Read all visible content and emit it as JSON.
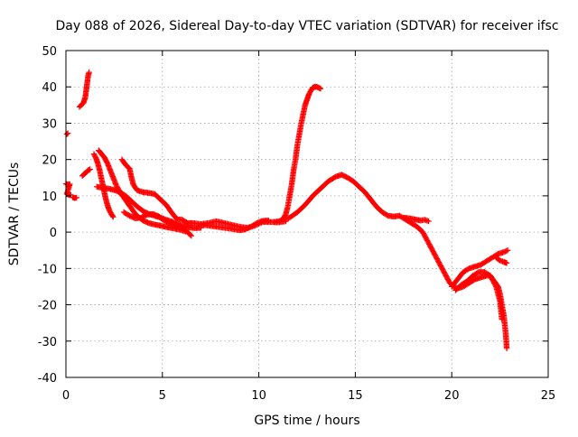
{
  "chart_data": {
    "type": "scatter",
    "title": "Day 088 of 2026, Sidereal Day-to-day VTEC variation (SDTVAR) for receiver ifsc",
    "xlabel": "GPS time / hours",
    "ylabel": "SDTVAR / TECUs",
    "xlim": [
      0,
      25
    ],
    "ylim": [
      -40,
      50
    ],
    "xticks": [
      0,
      5,
      10,
      15,
      20,
      25
    ],
    "yticks": [
      -40,
      -30,
      -20,
      -10,
      0,
      10,
      20,
      30,
      40,
      50
    ],
    "grid": true,
    "legend": "none",
    "marker": "plus",
    "color": "#ff0000",
    "series": [
      {
        "name": "early-point-1",
        "points": [
          [
            0.05,
            27
          ],
          [
            0.1,
            27.2
          ]
        ]
      },
      {
        "name": "early-point-2",
        "points": [
          [
            0.0,
            13.3
          ],
          [
            0.1,
            13.1
          ],
          [
            0.2,
            13.2
          ],
          [
            0.05,
            10.5
          ],
          [
            0.15,
            10.3
          ],
          [
            0.25,
            10.2
          ]
        ]
      },
      {
        "name": "early-point-3",
        "points": [
          [
            0.35,
            9.6
          ],
          [
            0.45,
            9.4
          ],
          [
            0.55,
            9.5
          ]
        ]
      },
      {
        "name": "early-point-4",
        "points": [
          [
            0.85,
            15.5
          ],
          [
            0.95,
            16
          ],
          [
            1.05,
            16.5
          ],
          [
            1.15,
            17
          ],
          [
            1.25,
            17.3
          ]
        ]
      },
      {
        "name": "pass-high-early",
        "points": [
          [
            0.7,
            34.5
          ],
          [
            0.8,
            35
          ],
          [
            0.9,
            35.5
          ],
          [
            1.0,
            37
          ],
          [
            1.05,
            39
          ],
          [
            1.1,
            41
          ],
          [
            1.15,
            43
          ],
          [
            1.2,
            44
          ]
        ]
      },
      {
        "name": "pass-early-a",
        "points": [
          [
            1.45,
            21.5
          ],
          [
            1.55,
            20.5
          ],
          [
            1.65,
            19
          ],
          [
            1.75,
            17
          ],
          [
            1.85,
            14.5
          ],
          [
            1.95,
            12
          ],
          [
            2.05,
            9.5
          ],
          [
            2.15,
            7.5
          ],
          [
            2.25,
            6
          ],
          [
            2.35,
            5
          ],
          [
            2.45,
            4.2
          ]
        ]
      },
      {
        "name": "pass-early-b",
        "points": [
          [
            1.7,
            22.5
          ],
          [
            1.85,
            21.5
          ],
          [
            2.0,
            20.5
          ],
          [
            2.15,
            19
          ],
          [
            2.3,
            17
          ],
          [
            2.45,
            15
          ],
          [
            2.6,
            13
          ],
          [
            2.8,
            11
          ],
          [
            3.0,
            9.5
          ],
          [
            3.2,
            8
          ],
          [
            3.4,
            6.5
          ],
          [
            3.6,
            5
          ],
          [
            3.8,
            4
          ],
          [
            4.0,
            3.2
          ],
          [
            4.3,
            2.5
          ],
          [
            4.6,
            2.1
          ],
          [
            4.9,
            1.8
          ],
          [
            5.2,
            1.4
          ],
          [
            5.5,
            1.1
          ],
          [
            5.8,
            0.8
          ],
          [
            6.0,
            0.5
          ],
          [
            6.2,
            0.2
          ]
        ]
      },
      {
        "name": "pass-early-c",
        "points": [
          [
            1.6,
            12.5
          ],
          [
            1.9,
            12.2
          ],
          [
            2.2,
            12
          ],
          [
            2.5,
            11.6
          ],
          [
            2.8,
            11
          ],
          [
            3.1,
            10
          ],
          [
            3.4,
            8.5
          ],
          [
            3.7,
            7
          ],
          [
            4.0,
            5.8
          ],
          [
            4.3,
            5
          ],
          [
            4.6,
            4.5
          ],
          [
            4.9,
            4
          ],
          [
            5.2,
            3.4
          ],
          [
            5.5,
            2.9
          ],
          [
            5.8,
            2.2
          ],
          [
            6.1,
            1.7
          ],
          [
            6.4,
            1.3
          ],
          [
            6.7,
            1.1
          ],
          [
            7.0,
            1.2
          ]
        ]
      },
      {
        "name": "pass-early-d",
        "points": [
          [
            2.9,
            20
          ],
          [
            3.1,
            18.5
          ],
          [
            3.3,
            17.5
          ],
          [
            3.4,
            15
          ],
          [
            3.5,
            13
          ],
          [
            3.7,
            11.5
          ],
          [
            4.0,
            11
          ],
          [
            4.3,
            10.8
          ],
          [
            4.6,
            10.5
          ],
          [
            4.8,
            9.5
          ],
          [
            5.0,
            8.5
          ],
          [
            5.2,
            7.5
          ],
          [
            5.4,
            6
          ],
          [
            5.6,
            4.5
          ],
          [
            5.8,
            3.5
          ],
          [
            6.0,
            3.5
          ],
          [
            6.3,
            2.5
          ],
          [
            6.6,
            2.5
          ],
          [
            7.0,
            2.2
          ],
          [
            7.4,
            2.5
          ],
          [
            7.8,
            3
          ],
          [
            8.2,
            2.5
          ],
          [
            8.6,
            2
          ],
          [
            9.0,
            1.5
          ],
          [
            9.4,
            1.2
          ],
          [
            9.8,
            1.8
          ],
          [
            10.2,
            2.8
          ],
          [
            10.6,
            2.8
          ],
          [
            11.0,
            2.7
          ],
          [
            11.4,
            3
          ]
        ]
      },
      {
        "name": "pass-early-e",
        "points": [
          [
            3.0,
            5.5
          ],
          [
            3.3,
            4.5
          ],
          [
            3.6,
            3.8
          ],
          [
            3.9,
            4
          ],
          [
            4.2,
            4.8
          ],
          [
            4.5,
            5
          ],
          [
            4.8,
            4.4
          ],
          [
            5.1,
            3.2
          ],
          [
            5.4,
            2.4
          ],
          [
            5.7,
            1.7
          ],
          [
            6.0,
            1.5
          ],
          [
            6.3,
            0
          ],
          [
            6.5,
            -1
          ]
        ]
      },
      {
        "name": "pass-dip-mid",
        "points": [
          [
            7.0,
            2
          ],
          [
            7.4,
            1.8
          ],
          [
            7.8,
            1.5
          ],
          [
            8.2,
            1.2
          ],
          [
            8.6,
            0.9
          ],
          [
            9.0,
            0.5
          ],
          [
            9.3,
            0.8
          ],
          [
            9.6,
            1.5
          ],
          [
            9.9,
            2.5
          ],
          [
            10.2,
            3.1
          ],
          [
            10.5,
            3.2
          ]
        ]
      },
      {
        "name": "pass-rise-high",
        "points": [
          [
            11.2,
            3.5
          ],
          [
            11.3,
            4
          ],
          [
            11.4,
            5
          ],
          [
            11.5,
            7
          ],
          [
            11.6,
            10
          ],
          [
            11.7,
            13
          ],
          [
            11.8,
            17
          ],
          [
            11.9,
            20
          ],
          [
            12.0,
            24
          ],
          [
            12.1,
            27
          ],
          [
            12.2,
            30
          ],
          [
            12.3,
            32.5
          ],
          [
            12.4,
            35
          ],
          [
            12.5,
            36.5
          ],
          [
            12.6,
            38
          ],
          [
            12.7,
            39
          ],
          [
            12.8,
            39.8
          ],
          [
            12.9,
            40
          ],
          [
            13.0,
            40
          ],
          [
            13.1,
            39.8
          ],
          [
            13.2,
            39.5
          ]
        ]
      },
      {
        "name": "pass-main-hump",
        "points": [
          [
            10.8,
            2.8
          ],
          [
            11.2,
            3.2
          ],
          [
            11.6,
            4
          ],
          [
            12.0,
            5.5
          ],
          [
            12.4,
            7.5
          ],
          [
            12.8,
            10
          ],
          [
            13.2,
            12
          ],
          [
            13.6,
            14
          ],
          [
            14.0,
            15.3
          ],
          [
            14.3,
            15.8
          ],
          [
            14.6,
            15
          ],
          [
            14.9,
            14
          ],
          [
            15.2,
            12.5
          ],
          [
            15.5,
            11
          ],
          [
            15.8,
            9
          ],
          [
            16.1,
            7
          ],
          [
            16.4,
            5.5
          ],
          [
            16.7,
            4.5
          ],
          [
            17.0,
            4.3
          ],
          [
            17.3,
            4.5
          ],
          [
            17.6,
            3.5
          ],
          [
            17.9,
            2.5
          ],
          [
            18.2,
            1.5
          ],
          [
            18.5,
            0
          ],
          [
            18.7,
            -2
          ],
          [
            18.9,
            -4
          ]
        ]
      },
      {
        "name": "pass-post-hump",
        "points": [
          [
            17.5,
            4
          ],
          [
            17.8,
            3.8
          ],
          [
            18.1,
            3.5
          ],
          [
            18.4,
            3.2
          ],
          [
            18.6,
            3.4
          ],
          [
            18.8,
            3
          ]
        ]
      },
      {
        "name": "pass-late-a",
        "points": [
          [
            18.9,
            -4
          ],
          [
            19.1,
            -6
          ],
          [
            19.3,
            -8
          ],
          [
            19.5,
            -10
          ],
          [
            19.7,
            -12
          ],
          [
            19.9,
            -14
          ],
          [
            20.1,
            -15
          ],
          [
            20.3,
            -15.5
          ],
          [
            20.6,
            -15
          ],
          [
            20.9,
            -14
          ],
          [
            21.2,
            -13
          ],
          [
            21.5,
            -12.5
          ],
          [
            21.8,
            -12
          ],
          [
            22.0,
            -12
          ],
          [
            22.2,
            -13.5
          ],
          [
            22.4,
            -15
          ],
          [
            22.5,
            -17
          ],
          [
            22.6,
            -20
          ],
          [
            22.7,
            -23
          ],
          [
            22.8,
            -28
          ],
          [
            22.85,
            -32
          ]
        ]
      },
      {
        "name": "pass-late-b",
        "points": [
          [
            20.0,
            -15
          ],
          [
            20.3,
            -13
          ],
          [
            20.6,
            -11
          ],
          [
            20.9,
            -10
          ],
          [
            21.2,
            -9.5
          ],
          [
            21.5,
            -9
          ],
          [
            21.8,
            -8
          ],
          [
            22.1,
            -7
          ],
          [
            22.4,
            -6
          ],
          [
            22.7,
            -5.5
          ],
          [
            22.9,
            -5
          ]
        ]
      },
      {
        "name": "pass-late-c",
        "points": [
          [
            22.3,
            -7
          ],
          [
            22.5,
            -7.8
          ],
          [
            22.7,
            -8.2
          ],
          [
            22.85,
            -8.5
          ]
        ]
      },
      {
        "name": "pass-late-d",
        "points": [
          [
            20.2,
            -16
          ],
          [
            20.5,
            -14.5
          ],
          [
            20.8,
            -13.5
          ],
          [
            21.1,
            -12
          ],
          [
            21.4,
            -11
          ],
          [
            21.7,
            -11
          ],
          [
            22.0,
            -12
          ],
          [
            22.3,
            -15
          ],
          [
            22.5,
            -19
          ],
          [
            22.6,
            -24
          ]
        ]
      }
    ]
  }
}
